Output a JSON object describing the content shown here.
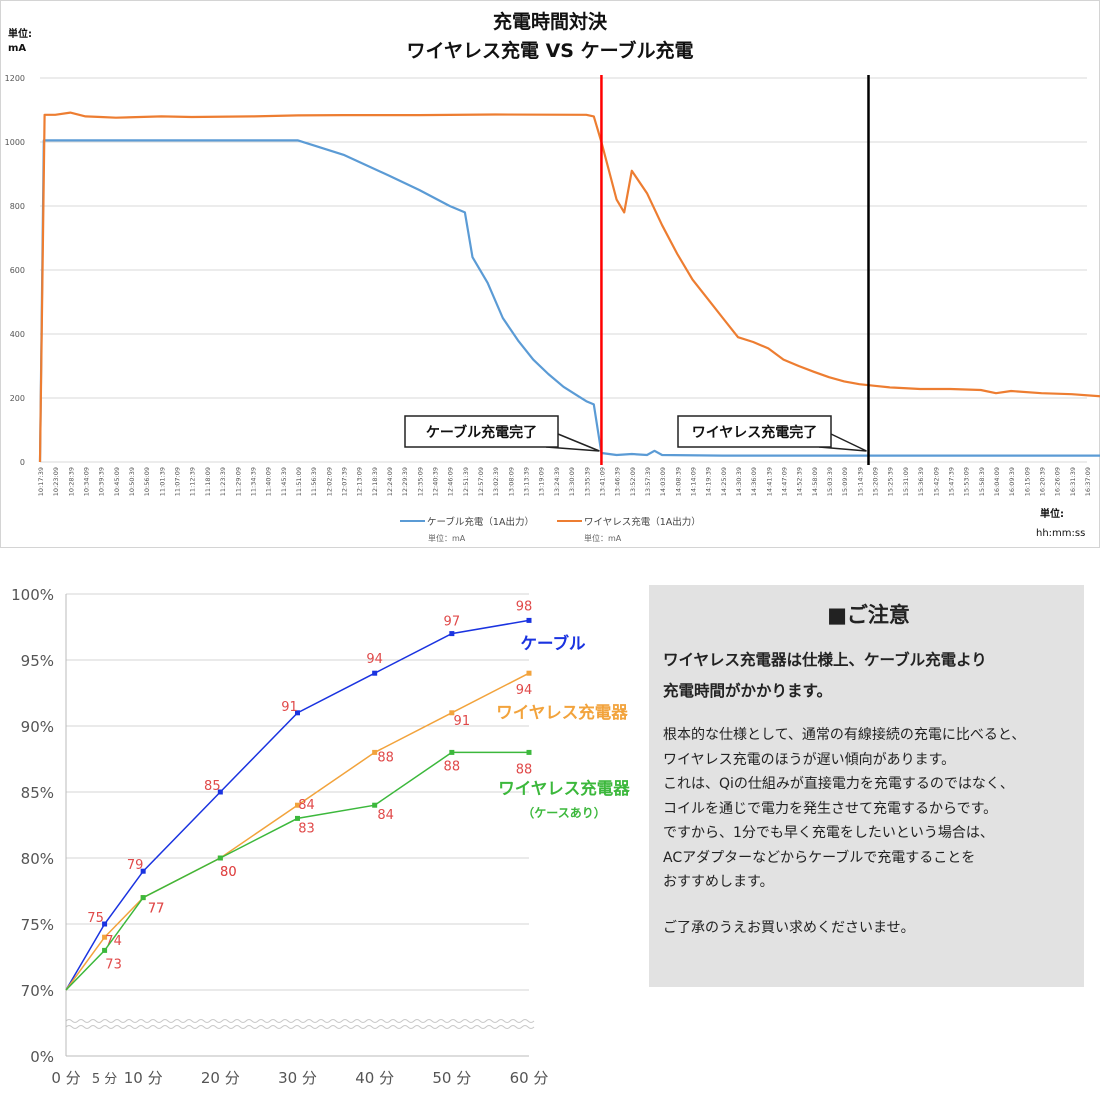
{
  "chart_data": [
    {
      "type": "line",
      "title": "充電時間対決",
      "subtitle": "ワイヤレス充電 VS ケーブル充電",
      "unit_label_y": [
        "単位:",
        "mA"
      ],
      "unit_label_x": [
        "単位:",
        "hh:mm:ss"
      ],
      "ylim": [
        0,
        1200
      ],
      "yticks": [
        "0",
        "200",
        "400",
        "600",
        "800",
        "1000",
        "1200"
      ],
      "x_labels": [
        "10:17:39",
        "10:23:09",
        "10:28:39",
        "10:34:09",
        "10:39:39",
        "10:45:09",
        "10:50:39",
        "10:56:09",
        "11:01:39",
        "11:07:09",
        "11:12:39",
        "11:18:09",
        "11:23:39",
        "11:29:09",
        "11:34:39",
        "11:40:09",
        "11:45:39",
        "11:51:09",
        "11:56:39",
        "12:02:09",
        "12:07:39",
        "12:13:09",
        "12:18:39",
        "12:24:09",
        "12:29:39",
        "12:35:09",
        "12:40:39",
        "12:46:09",
        "12:51:39",
        "12:57:09",
        "13:02:39",
        "13:08:09",
        "13:13:39",
        "13:19:09",
        "13:24:39",
        "13:30:09",
        "13:35:39",
        "13:41:09",
        "13:46:39",
        "13:52:09",
        "13:57:39",
        "14:03:09",
        "14:08:39",
        "14:14:09",
        "14:19:39",
        "14:25:09",
        "14:30:39",
        "14:36:09",
        "14:41:39",
        "14:47:09",
        "14:52:39",
        "14:58:09",
        "15:03:39",
        "15:09:09",
        "15:14:39",
        "15:20:09",
        "15:25:39",
        "15:31:09",
        "15:36:39",
        "15:42:09",
        "15:47:39",
        "15:53:09",
        "15:58:39",
        "16:04:09",
        "16:09:39",
        "16:15:09",
        "16:20:39",
        "16:26:09",
        "16:31:39",
        "16:37:09"
      ],
      "series": [
        {
          "name": "ケーブル充電（1A出力）",
          "unit_note": "単位：mA",
          "color": "#5b9bd5",
          "points": [
            [
              0,
              0
            ],
            [
              0.25,
              1005
            ],
            [
              1,
              1005
            ],
            [
              3,
              1005
            ],
            [
              17,
              1005
            ],
            [
              18,
              990
            ],
            [
              20,
              960
            ],
            [
              23,
              895
            ],
            [
              25,
              850
            ],
            [
              27,
              800
            ],
            [
              28,
              780
            ],
            [
              28.5,
              640
            ],
            [
              29.5,
              560
            ],
            [
              30.5,
              450
            ],
            [
              31.5,
              380
            ],
            [
              32.5,
              320
            ],
            [
              33.5,
              275
            ],
            [
              34.5,
              235
            ],
            [
              35.5,
              205
            ],
            [
              36,
              190
            ],
            [
              36.5,
              180
            ],
            [
              37,
              28
            ],
            [
              38,
              22
            ],
            [
              39,
              25
            ],
            [
              40,
              22
            ],
            [
              40.5,
              35
            ],
            [
              41,
              22
            ],
            [
              45,
              20
            ],
            [
              50,
              20
            ],
            [
              55,
              20
            ],
            [
              60,
              20
            ],
            [
              65,
              20
            ],
            [
              70,
              20
            ]
          ]
        },
        {
          "name": "ワイヤレス充電（1A出力）",
          "unit_note": "単位：mA",
          "color": "#ed7d31",
          "points": [
            [
              0,
              0
            ],
            [
              0.3,
              1085
            ],
            [
              1,
              1085
            ],
            [
              2,
              1092
            ],
            [
              3,
              1080
            ],
            [
              4,
              1078
            ],
            [
              5,
              1076
            ],
            [
              8,
              1080
            ],
            [
              10,
              1078
            ],
            [
              14,
              1080
            ],
            [
              17,
              1083
            ],
            [
              20,
              1084
            ],
            [
              25,
              1084
            ],
            [
              30,
              1086
            ],
            [
              36,
              1085
            ],
            [
              36.5,
              1080
            ],
            [
              37,
              1000
            ],
            [
              38,
              820
            ],
            [
              38.5,
              780
            ],
            [
              39,
              910
            ],
            [
              40,
              840
            ],
            [
              41,
              740
            ],
            [
              42,
              650
            ],
            [
              43,
              570
            ],
            [
              44,
              510
            ],
            [
              45,
              450
            ],
            [
              46,
              390
            ],
            [
              47,
              375
            ],
            [
              48,
              355
            ],
            [
              49,
              320
            ],
            [
              50,
              300
            ],
            [
              51,
              282
            ],
            [
              52,
              265
            ],
            [
              53,
              252
            ],
            [
              54,
              243
            ],
            [
              55,
              238
            ],
            [
              56,
              233
            ],
            [
              58,
              228
            ],
            [
              60,
              228
            ],
            [
              62,
              225
            ],
            [
              63,
              215
            ],
            [
              64,
              222
            ],
            [
              66,
              215
            ],
            [
              68,
              212
            ],
            [
              70,
              205
            ]
          ]
        }
      ],
      "markers": [
        {
          "label": "ケーブル充電完了",
          "x_index": 37,
          "color": "#ff0000"
        },
        {
          "label": "ワイヤレス充電完了",
          "x_index": 54.6,
          "color": "#000000"
        }
      ]
    },
    {
      "type": "line",
      "ylim": [
        0,
        100
      ],
      "yticks": [
        "0%",
        "70%",
        "75%",
        "80%",
        "85%",
        "90%",
        "95%",
        "100%"
      ],
      "x_ticks": [
        {
          "x": 0,
          "label": "0 分"
        },
        {
          "x": 5,
          "label": "5 分"
        },
        {
          "x": 10,
          "label": "10 分"
        },
        {
          "x": 20,
          "label": "20 分"
        },
        {
          "x": 30,
          "label": "30 分"
        },
        {
          "x": 40,
          "label": "40 分"
        },
        {
          "x": 50,
          "label": "50 分"
        },
        {
          "x": 60,
          "label": "60 分"
        }
      ],
      "axis_break": "0%〜70%",
      "series": [
        {
          "name": "ケーブル",
          "sublabel": "",
          "color": "#1a33e0",
          "x": [
            0,
            5,
            10,
            20,
            30,
            40,
            50,
            60
          ],
          "values": [
            70,
            75,
            79,
            85,
            91,
            94,
            97,
            98
          ]
        },
        {
          "name": "ワイヤレス充電器",
          "sublabel": "",
          "color": "#f2a33c",
          "x": [
            0,
            5,
            10,
            20,
            30,
            40,
            50,
            60
          ],
          "values": [
            70,
            74,
            77,
            80,
            84,
            88,
            91,
            94
          ]
        },
        {
          "name": "ワイヤレス充電器",
          "sublabel": "（ケースあり）",
          "color": "#3cb83c",
          "x": [
            0,
            5,
            10,
            20,
            30,
            40,
            50,
            60
          ],
          "values": [
            70,
            73,
            77,
            80,
            83,
            84,
            88,
            88
          ]
        }
      ]
    }
  ],
  "notice": {
    "heading": "■ご注意",
    "lead": [
      "ワイヤレス充電器は仕様上、ケーブル充電より",
      "充電時間がかかります。"
    ],
    "body": [
      "根本的な仕様として、通常の有線接続の充電に比べると、",
      "ワイヤレス充電のほうが遅い傾向があります。",
      "これは、Qiの仕組みが直接電力を充電するのではなく、",
      "コイルを通じで電力を発生させて充電するからです。",
      "ですから、1分でも早く充電をしたいという場合は、",
      "ACアダプターなどからケーブルで充電することを",
      "おすすめします。"
    ],
    "closing": "ご了承のうえお買い求めくださいませ。"
  }
}
